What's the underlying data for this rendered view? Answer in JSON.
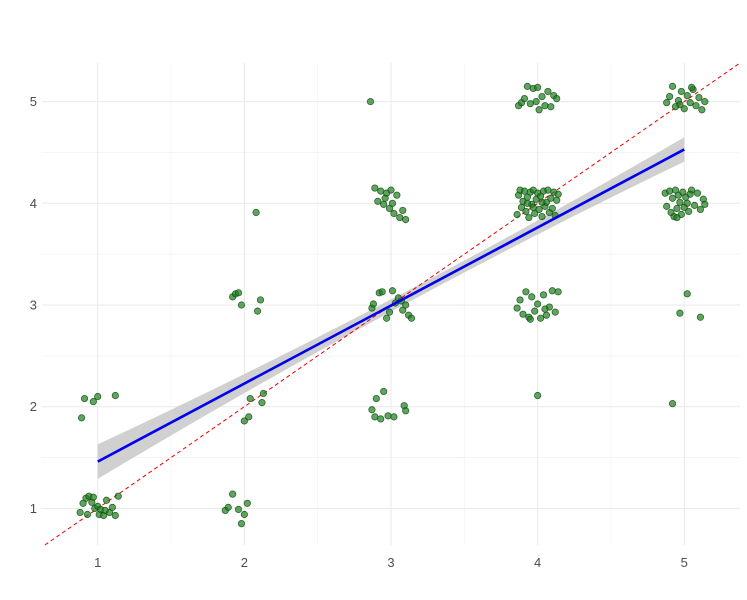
{
  "chart_data": {
    "type": "scatter",
    "title": "",
    "xlabel": "",
    "ylabel": "",
    "xlim": [
      0.62,
      5.38
    ],
    "ylim": [
      0.64,
      5.38
    ],
    "x_ticks": [
      "1",
      "2",
      "3",
      "4",
      "5"
    ],
    "y_ticks": [
      "1",
      "2",
      "3",
      "4",
      "5"
    ],
    "grid": true,
    "legend": "none",
    "colors": {
      "points": "#1e7d1e",
      "fit_line": "#0000ee",
      "confidence_band": "#c8c8c8",
      "identity_line": "#ee0000",
      "grid": "#ebebeb"
    },
    "reference_line": {
      "slope": 1,
      "intercept": 0,
      "style": "dashed",
      "color": "#ee0000"
    },
    "fit": {
      "method": "linear",
      "x_range": [
        1,
        5
      ],
      "y_at_x": [
        [
          1,
          1.46
        ],
        [
          5,
          4.53
        ]
      ],
      "ci_halfwidth_at_x": [
        [
          1,
          0.17
        ],
        [
          3,
          0.06
        ],
        [
          5,
          0.12
        ]
      ]
    },
    "points": [
      [
        0.88,
        0.96
      ],
      [
        0.9,
        1.05
      ],
      [
        0.92,
        1.1
      ],
      [
        0.94,
        1.12
      ],
      [
        0.96,
        1.06
      ],
      [
        0.98,
        1.0
      ],
      [
        1.0,
        1.02
      ],
      [
        1.01,
        0.94
      ],
      [
        1.02,
        0.99
      ],
      [
        1.04,
        0.93
      ],
      [
        1.06,
        1.08
      ],
      [
        1.08,
        0.96
      ],
      [
        1.1,
        1.01
      ],
      [
        1.12,
        0.93
      ],
      [
        1.14,
        1.12
      ],
      [
        0.93,
        0.94
      ],
      [
        0.97,
        1.11
      ],
      [
        1.05,
        0.98
      ],
      [
        0.89,
        1.89
      ],
      [
        0.91,
        2.08
      ],
      [
        0.97,
        2.05
      ],
      [
        1.0,
        2.1
      ],
      [
        1.12,
        2.11
      ],
      [
        1.87,
        0.98
      ],
      [
        1.89,
        1.01
      ],
      [
        1.92,
        1.14
      ],
      [
        1.96,
        0.99
      ],
      [
        1.98,
        0.85
      ],
      [
        2.0,
        0.94
      ],
      [
        2.02,
        1.05
      ],
      [
        2.0,
        1.86
      ],
      [
        2.03,
        1.9
      ],
      [
        2.04,
        2.08
      ],
      [
        2.12,
        2.04
      ],
      [
        2.13,
        2.13
      ],
      [
        1.92,
        3.08
      ],
      [
        1.94,
        3.11
      ],
      [
        1.96,
        3.12
      ],
      [
        1.98,
        3.0
      ],
      [
        2.09,
        2.94
      ],
      [
        2.11,
        3.05
      ],
      [
        2.08,
        3.91
      ],
      [
        2.86,
        5.0
      ],
      [
        2.89,
        1.9
      ],
      [
        2.87,
        1.97
      ],
      [
        2.9,
        2.08
      ],
      [
        2.93,
        1.88
      ],
      [
        2.95,
        2.15
      ],
      [
        2.98,
        1.91
      ],
      [
        3.02,
        1.9
      ],
      [
        3.09,
        2.01
      ],
      [
        3.1,
        1.96
      ],
      [
        2.87,
        2.97
      ],
      [
        2.88,
        3.01
      ],
      [
        2.92,
        3.12
      ],
      [
        2.94,
        3.13
      ],
      [
        2.97,
        2.87
      ],
      [
        2.99,
        2.93
      ],
      [
        3.01,
        3.14
      ],
      [
        3.03,
        3.02
      ],
      [
        3.05,
        3.07
      ],
      [
        3.07,
        3.04
      ],
      [
        3.08,
        2.95
      ],
      [
        3.1,
        3.0
      ],
      [
        3.12,
        2.9
      ],
      [
        3.14,
        2.87
      ],
      [
        2.89,
        4.15
      ],
      [
        2.91,
        4.02
      ],
      [
        2.93,
        4.12
      ],
      [
        2.95,
        3.99
      ],
      [
        2.97,
        4.1
      ],
      [
        2.99,
        3.95
      ],
      [
        3.0,
        4.13
      ],
      [
        3.02,
        3.9
      ],
      [
        3.04,
        4.08
      ],
      [
        3.06,
        3.86
      ],
      [
        3.08,
        3.93
      ],
      [
        3.1,
        3.84
      ],
      [
        2.96,
        4.05
      ],
      [
        3.01,
        4.0
      ],
      [
        4.0,
        2.11
      ],
      [
        3.86,
        2.97
      ],
      [
        3.88,
        3.05
      ],
      [
        3.9,
        2.91
      ],
      [
        3.92,
        3.13
      ],
      [
        3.94,
        2.88
      ],
      [
        3.96,
        3.08
      ],
      [
        3.98,
        2.94
      ],
      [
        4.0,
        3.01
      ],
      [
        4.02,
        2.87
      ],
      [
        4.04,
        3.1
      ],
      [
        4.06,
        2.9
      ],
      [
        4.08,
        2.98
      ],
      [
        4.1,
        3.14
      ],
      [
        4.12,
        2.93
      ],
      [
        4.14,
        3.13
      ],
      [
        3.95,
        2.86
      ],
      [
        4.05,
        2.96
      ],
      [
        3.86,
        3.89
      ],
      [
        3.87,
        4.08
      ],
      [
        3.88,
        4.13
      ],
      [
        3.89,
        3.96
      ],
      [
        3.9,
        4.02
      ],
      [
        3.91,
        4.12
      ],
      [
        3.92,
        3.92
      ],
      [
        3.93,
        4.06
      ],
      [
        3.94,
        3.86
      ],
      [
        3.95,
        4.11
      ],
      [
        3.96,
        3.99
      ],
      [
        3.97,
        4.13
      ],
      [
        3.98,
        3.9
      ],
      [
        3.99,
        4.04
      ],
      [
        4.0,
        4.1
      ],
      [
        4.01,
        3.94
      ],
      [
        4.02,
        4.07
      ],
      [
        4.03,
        3.87
      ],
      [
        4.04,
        4.12
      ],
      [
        4.05,
        3.97
      ],
      [
        4.06,
        4.01
      ],
      [
        4.07,
        4.13
      ],
      [
        4.08,
        3.91
      ],
      [
        4.09,
        4.05
      ],
      [
        4.1,
        3.95
      ],
      [
        4.11,
        4.11
      ],
      [
        4.12,
        3.88
      ],
      [
        4.13,
        4.03
      ],
      [
        4.14,
        4.09
      ],
      [
        3.93,
        4.0
      ],
      [
        3.97,
        3.96
      ],
      [
        4.03,
        4.01
      ],
      [
        3.87,
        4.96
      ],
      [
        3.89,
        4.99
      ],
      [
        3.91,
        5.03
      ],
      [
        3.93,
        5.15
      ],
      [
        3.95,
        4.98
      ],
      [
        3.97,
        5.13
      ],
      [
        3.99,
        5.0
      ],
      [
        4.01,
        4.92
      ],
      [
        4.03,
        5.05
      ],
      [
        4.05,
        4.96
      ],
      [
        4.07,
        5.1
      ],
      [
        4.09,
        4.95
      ],
      [
        4.11,
        5.06
      ],
      [
        4.13,
        5.03
      ],
      [
        4.0,
        5.14
      ],
      [
        4.92,
        2.03
      ],
      [
        4.97,
        2.92
      ],
      [
        5.02,
        3.11
      ],
      [
        5.11,
        2.88
      ],
      [
        4.87,
        4.1
      ],
      [
        4.88,
        3.97
      ],
      [
        4.9,
        4.12
      ],
      [
        4.91,
        3.91
      ],
      [
        4.92,
        4.05
      ],
      [
        4.93,
        3.87
      ],
      [
        4.94,
        4.13
      ],
      [
        4.95,
        3.95
      ],
      [
        4.96,
        4.08
      ],
      [
        4.97,
        4.01
      ],
      [
        4.98,
        3.89
      ],
      [
        4.99,
        4.11
      ],
      [
        5.0,
        3.96
      ],
      [
        5.01,
        4.06
      ],
      [
        5.02,
        4.0
      ],
      [
        5.03,
        3.92
      ],
      [
        5.05,
        4.13
      ],
      [
        5.07,
        3.98
      ],
      [
        5.09,
        4.1
      ],
      [
        5.11,
        3.94
      ],
      [
        5.13,
        4.04
      ],
      [
        5.14,
        3.99
      ],
      [
        4.95,
        3.86
      ],
      [
        5.04,
        4.09
      ],
      [
        4.88,
        4.99
      ],
      [
        4.9,
        5.05
      ],
      [
        4.92,
        5.15
      ],
      [
        4.94,
        4.95
      ],
      [
        4.96,
        5.01
      ],
      [
        4.98,
        5.1
      ],
      [
        5.0,
        4.93
      ],
      [
        5.02,
        5.06
      ],
      [
        5.04,
        4.99
      ],
      [
        5.06,
        5.12
      ],
      [
        5.08,
        4.96
      ],
      [
        5.1,
        5.04
      ],
      [
        5.12,
        4.92
      ],
      [
        5.14,
        5.0
      ],
      [
        5.05,
        5.14
      ],
      [
        4.97,
        4.97
      ]
    ]
  }
}
